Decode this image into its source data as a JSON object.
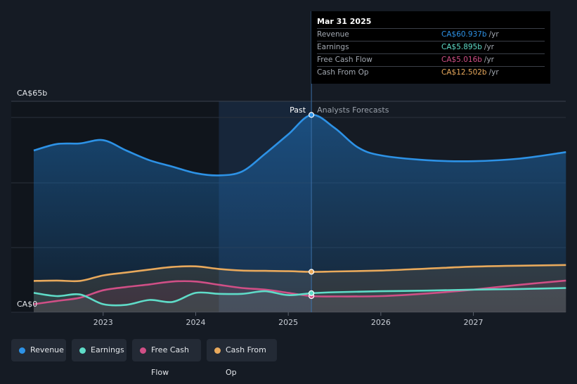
{
  "colors": {
    "revenue": "#2d92e6",
    "earnings": "#5fdcc8",
    "free_cash_flow": "#d04f86",
    "cash_from_op": "#e8a95c",
    "grid": "#2a313c",
    "axis_text": "#c9ced6",
    "past_marker": "#ffffff",
    "forecast_label": "#9aa1ab"
  },
  "tooltip": {
    "date": "Mar 31 2025",
    "rows": [
      {
        "label": "Revenue",
        "value": "CA$60.937b",
        "unit": "/yr",
        "color": "#2d92e6"
      },
      {
        "label": "Earnings",
        "value": "CA$5.895b",
        "unit": "/yr",
        "color": "#5fdcc8"
      },
      {
        "label": "Free Cash Flow",
        "value": "CA$5.016b",
        "unit": "/yr",
        "color": "#d04f86"
      },
      {
        "label": "Cash From Op",
        "value": "CA$12.502b",
        "unit": "/yr",
        "color": "#e8a95c"
      }
    ]
  },
  "legend": [
    {
      "label": "Revenue",
      "color": "#2d92e6"
    },
    {
      "label": "Earnings",
      "color": "#5fdcc8"
    },
    {
      "label": "Free Cash Flow",
      "color": "#d04f86"
    },
    {
      "label": "Cash From Op",
      "color": "#e8a95c"
    }
  ],
  "chart_data": {
    "type": "area",
    "title": "",
    "y_top_label": "CA$65b",
    "y_bottom_label": "CA$0",
    "ylim": [
      0,
      65
    ],
    "xlim": [
      2022.25,
      2028.0
    ],
    "past_label": "Past",
    "forecast_label": "Analysts Forecasts",
    "past_end": 2025.25,
    "highlight_start": 2024.25,
    "x_tick_labels": [
      "2023",
      "2024",
      "2025",
      "2026",
      "2027"
    ],
    "x_ticks": [
      2023,
      2024,
      2025,
      2026,
      2027
    ],
    "series": [
      {
        "name": "Revenue",
        "key": "revenue",
        "x": [
          2022.25,
          2022.5,
          2022.75,
          2023.0,
          2023.25,
          2023.5,
          2023.75,
          2024.0,
          2024.25,
          2024.5,
          2024.75,
          2025.0,
          2025.25,
          2025.5,
          2025.75,
          2026.0,
          2026.5,
          2027.0,
          2027.5,
          2028.0
        ],
        "values": [
          50,
          52,
          52.2,
          53.2,
          50,
          47,
          45,
          43,
          42.3,
          43.5,
          49,
          55,
          61,
          57,
          51,
          48.5,
          47,
          46.7,
          47.5,
          49.5
        ]
      },
      {
        "name": "Earnings",
        "key": "earnings",
        "x": [
          2022.25,
          2022.5,
          2022.75,
          2023.0,
          2023.25,
          2023.5,
          2023.75,
          2024.0,
          2024.25,
          2024.5,
          2024.75,
          2025.0,
          2025.25,
          2025.5,
          2026.0,
          2026.5,
          2027.0,
          2027.5,
          2028.0
        ],
        "values": [
          6,
          5,
          5.5,
          2.5,
          2.3,
          3.8,
          3.2,
          6,
          5.7,
          5.7,
          6.5,
          5.3,
          5.9,
          6.2,
          6.5,
          6.7,
          7,
          7.2,
          7.5
        ]
      },
      {
        "name": "Free Cash Flow",
        "key": "free_cash_flow",
        "x": [
          2022.25,
          2022.5,
          2022.75,
          2023.0,
          2023.25,
          2023.5,
          2023.75,
          2024.0,
          2024.25,
          2024.5,
          2024.75,
          2025.0,
          2025.25,
          2025.5,
          2026.0,
          2026.5,
          2027.0,
          2027.5,
          2028.0
        ],
        "values": [
          2.5,
          3.5,
          4.5,
          6.8,
          7.8,
          8.6,
          9.5,
          9.5,
          8.5,
          7.5,
          7,
          6,
          5.0,
          4.9,
          5,
          5.8,
          7,
          8.5,
          9.8
        ]
      },
      {
        "name": "Cash From Op",
        "key": "cash_from_op",
        "x": [
          2022.25,
          2022.5,
          2022.75,
          2023.0,
          2023.25,
          2023.5,
          2023.75,
          2024.0,
          2024.25,
          2024.5,
          2024.75,
          2025.0,
          2025.25,
          2025.5,
          2026.0,
          2026.5,
          2027.0,
          2027.5,
          2028.0
        ],
        "values": [
          9.7,
          9.8,
          9.7,
          11.4,
          12.3,
          13.2,
          14,
          14.2,
          13.4,
          12.9,
          12.8,
          12.7,
          12.5,
          12.6,
          12.9,
          13.5,
          14.1,
          14.4,
          14.6
        ]
      }
    ]
  }
}
